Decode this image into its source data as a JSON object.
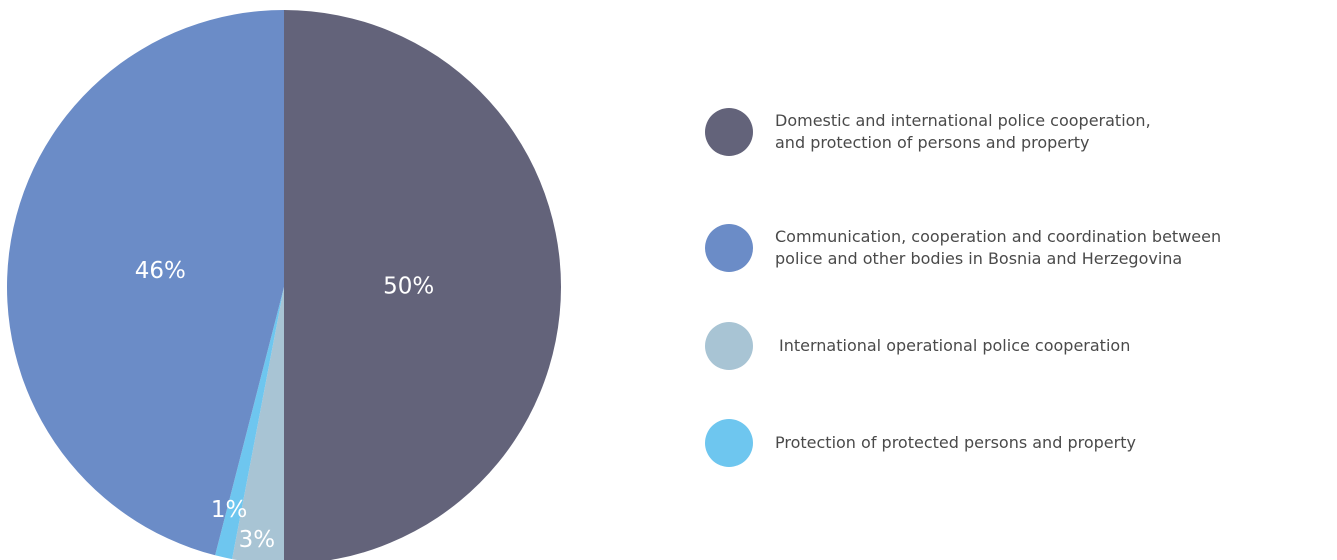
{
  "chart_data": {
    "type": "pie",
    "categories": [
      "Domestic and international police cooperation, and protection of persons and property",
      "International operational police cooperation",
      "Protection of protected persons and property",
      "Communication, cooperation and coordination between police and other bodies in Bosnia and Herzegovina"
    ],
    "values": [
      50,
      3,
      1,
      46
    ],
    "labels": [
      "50%",
      "3%",
      "1%",
      "46%"
    ],
    "colors": [
      "#63637a",
      "#a8c4d4",
      "#6ec6ef",
      "#6b8cc7"
    ],
    "legend_position": "right",
    "legend": [
      {
        "text": "Domestic and international police cooperation,\nand protection of persons and property",
        "color": "#63637a"
      },
      {
        "text": "Communication, cooperation and coordination between\npolice and other bodies in Bosnia and Herzegovina",
        "color": "#6b8cc7"
      },
      {
        "text": "International operational police cooperation",
        "color": "#a8c4d4"
      },
      {
        "text": "Protection of protected persons and property",
        "color": "#6ec6ef"
      }
    ]
  }
}
